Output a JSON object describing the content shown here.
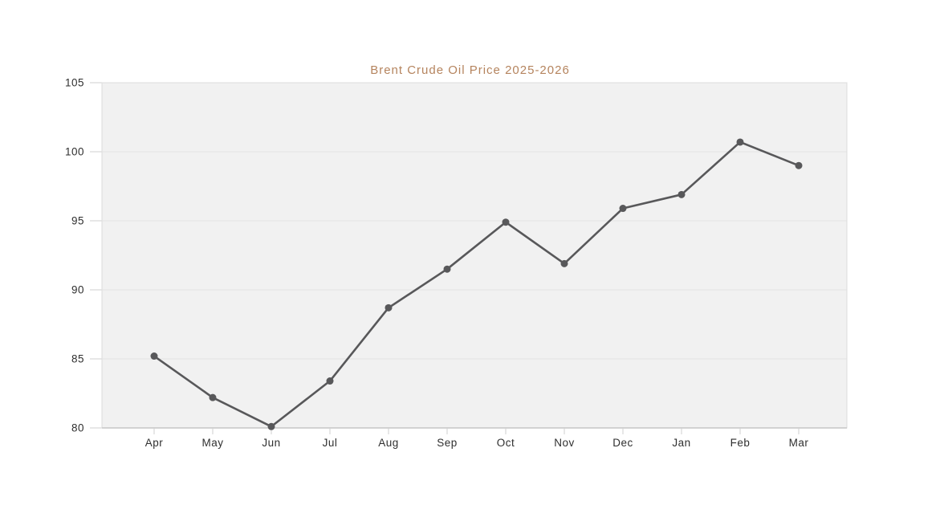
{
  "chart_data": {
    "type": "line",
    "title": "Brent Crude Oil Price 2025-2026",
    "categories": [
      "Apr",
      "May",
      "Jun",
      "Jul",
      "Aug",
      "Sep",
      "Oct",
      "Nov",
      "Dec",
      "Jan",
      "Feb",
      "Mar"
    ],
    "series": [
      {
        "name": "Brent Crude Oil Price",
        "values": [
          85.2,
          82.2,
          80.1,
          83.4,
          88.7,
          91.5,
          94.9,
          91.9,
          95.9,
          96.9,
          100.7,
          99.0
        ]
      }
    ],
    "xlabel": "",
    "ylabel": "",
    "ylim": [
      80,
      105
    ],
    "yticks": [
      80,
      85,
      90,
      95,
      100,
      105
    ],
    "grid": "horizontal",
    "legend": "none",
    "marker": "circle",
    "colors": {
      "line": "#58585a",
      "marker": "#58585a",
      "title": "#b5845e",
      "plot_background": "#f1f1f1",
      "gridline": "#e2e2e2",
      "border": "#dcdcdc",
      "axis_line": "#c6c6c6",
      "tick": "#cfcfcf",
      "tick_label": "#2f2f2f",
      "page_background": "#ffffff"
    }
  }
}
